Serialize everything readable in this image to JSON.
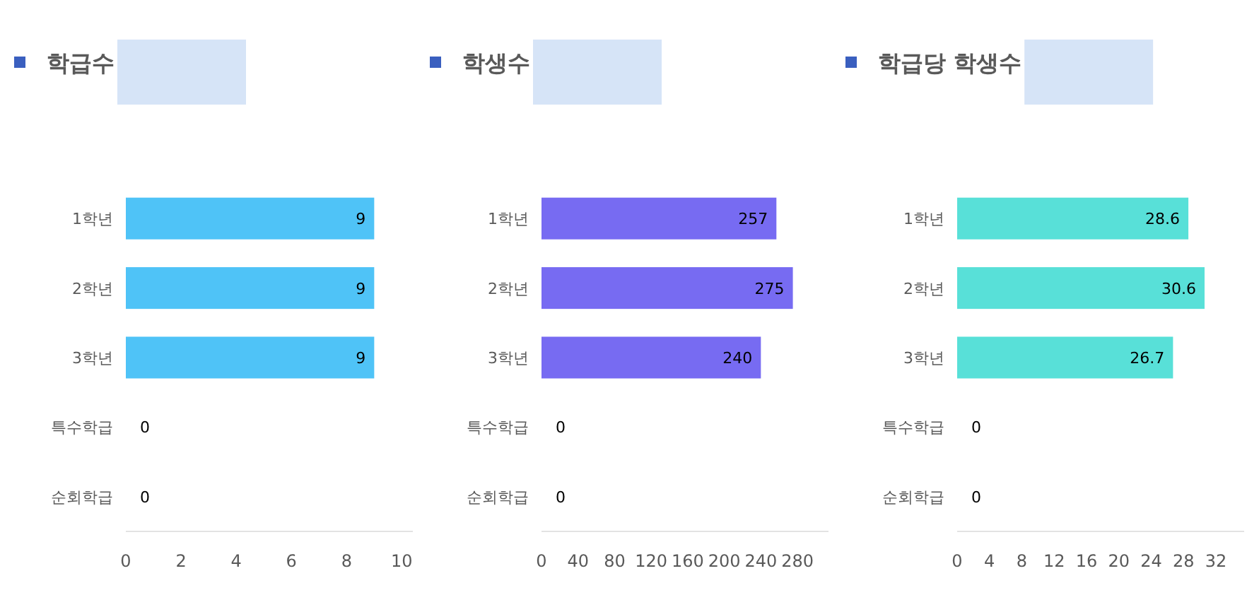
{
  "chart_data": [
    {
      "type": "bar",
      "orientation": "horizontal",
      "title": "학급수",
      "categories": [
        "1학년",
        "2학년",
        "3학년",
        "특수학급",
        "순회학급"
      ],
      "values": [
        9,
        9,
        9,
        0,
        0
      ],
      "color": "#4fc3f7",
      "xlim": [
        0,
        10.4
      ],
      "xticks": [
        0,
        2,
        4,
        6,
        8,
        10
      ],
      "data_labels": true,
      "grid": false
    },
    {
      "type": "bar",
      "orientation": "horizontal",
      "title": "학생수",
      "categories": [
        "1학년",
        "2학년",
        "3학년",
        "특수학급",
        "순회학급"
      ],
      "values": [
        257,
        275,
        240,
        0,
        0
      ],
      "color": "#776bf2",
      "xlim": [
        0,
        314
      ],
      "xticks": [
        0,
        40,
        80,
        120,
        160,
        200,
        240,
        280
      ],
      "data_labels": true,
      "grid": false
    },
    {
      "type": "bar",
      "orientation": "horizontal",
      "title": "학급당 학생수",
      "categories": [
        "1학년",
        "2학년",
        "3학년",
        "특수학급",
        "순회학급"
      ],
      "values": [
        28.6,
        30.6,
        26.7,
        0,
        0
      ],
      "color": "#58e0d8",
      "xlim": [
        0,
        35.5
      ],
      "xticks": [
        0,
        4,
        8,
        12,
        16,
        20,
        24,
        28,
        32
      ],
      "data_labels": true,
      "grid": false
    }
  ]
}
